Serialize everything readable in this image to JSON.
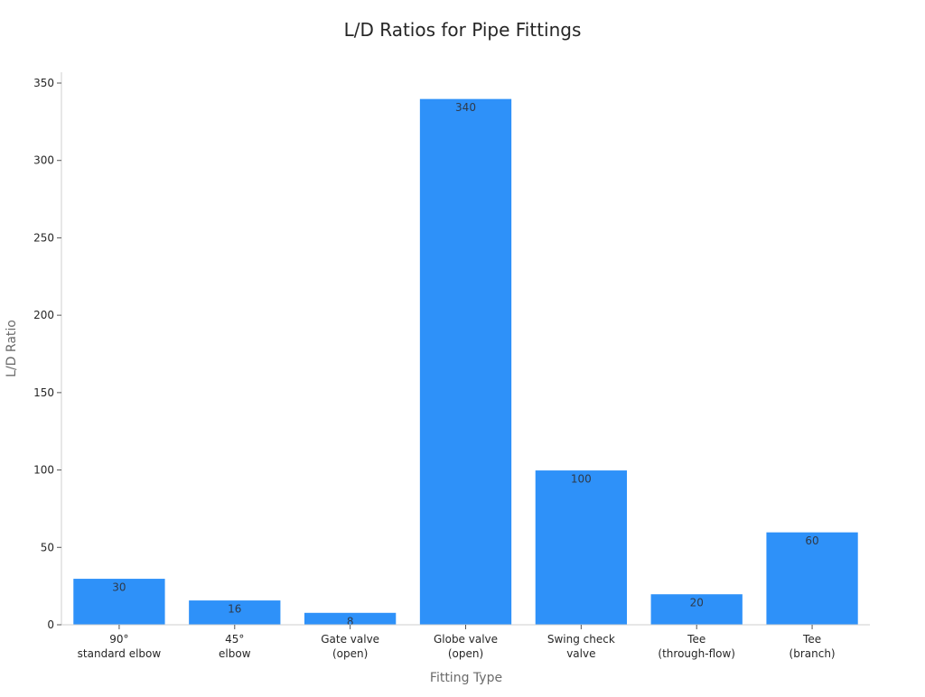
{
  "chart_data": {
    "type": "bar",
    "title": "L/D Ratios for Pipe Fittings",
    "xlabel": "Fitting Type",
    "ylabel": "L/D Ratio",
    "categories": [
      [
        "90°",
        "standard elbow"
      ],
      [
        "45°",
        "elbow"
      ],
      [
        "Gate valve",
        "(open)"
      ],
      [
        "Globe valve",
        "(open)"
      ],
      [
        "Swing check",
        "valve"
      ],
      [
        "Tee",
        "(through-flow)"
      ],
      [
        "Tee",
        "(branch)"
      ]
    ],
    "values": [
      30,
      16,
      8,
      340,
      100,
      20,
      60
    ],
    "data_labels": [
      "30",
      "16",
      "8",
      "340",
      "100",
      "20",
      "60"
    ],
    "ylim": [
      0,
      357
    ],
    "yticks": [
      0,
      50,
      100,
      150,
      200,
      250,
      300,
      350
    ],
    "grid": false,
    "legend": "none",
    "bar_color": "#2e91f9"
  }
}
